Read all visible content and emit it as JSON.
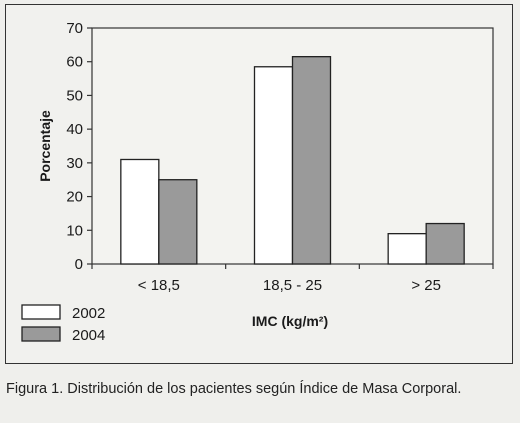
{
  "chart_data": {
    "type": "bar",
    "categories": [
      "< 18,5",
      "18,5 - 25",
      "> 25"
    ],
    "series": [
      {
        "name": "2002",
        "values": [
          31,
          58.5,
          9
        ],
        "color": "#ffffff"
      },
      {
        "name": "2004",
        "values": [
          25,
          61.5,
          12
        ],
        "color": "#9a9a9a"
      }
    ],
    "xlabel": "IMC (kg/m²)",
    "ylabel": "Porcentaje",
    "ylim": [
      0,
      70
    ],
    "yticks": [
      0,
      10,
      20,
      30,
      40,
      50,
      60,
      70
    ],
    "grid": false,
    "legend": "bottom-left"
  },
  "caption": "Figura 1. Distribución de los pacientes según Índice de Masa Corporal."
}
